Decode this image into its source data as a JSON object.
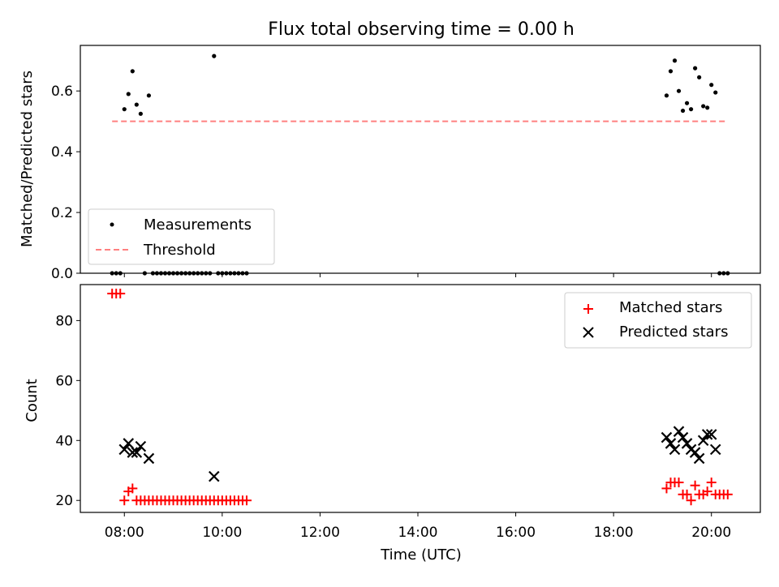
{
  "colors": {
    "measurement": "#000000",
    "threshold": "#ff8080",
    "matched": "#ff0000",
    "predicted": "#000000"
  },
  "chart_data": [
    {
      "type": "scatter",
      "title": "Flux total observing time = 0.00 h",
      "xlabel": "",
      "ylabel": "Matched/Predicted stars",
      "xlim_hours": [
        7.1,
        21.0
      ],
      "ylim": [
        0,
        0.75
      ],
      "x_ticks": [
        8,
        10,
        12,
        14,
        16,
        18,
        20
      ],
      "x_tick_labels": [],
      "y_ticks": [
        0.0,
        0.2,
        0.4,
        0.6
      ],
      "y_tick_labels": [
        "0.0",
        "0.2",
        "0.4",
        "0.6"
      ],
      "legend_placement": "lower-left",
      "legend": [
        "Measurements",
        "Threshold"
      ],
      "series": [
        {
          "name": "Measurements",
          "kind": "points",
          "points": [
            [
              "07:45",
              0
            ],
            [
              "07:50",
              0
            ],
            [
              "07:55",
              0
            ],
            [
              "08:00",
              0.54
            ],
            [
              "08:05",
              0.59
            ],
            [
              "08:10",
              0.665
            ],
            [
              "08:15",
              0.555
            ],
            [
              "08:20",
              0.525
            ],
            [
              "08:30",
              0.585
            ],
            [
              "08:25",
              0
            ],
            [
              "08:35",
              0
            ],
            [
              "08:40",
              0
            ],
            [
              "08:45",
              0
            ],
            [
              "08:50",
              0
            ],
            [
              "08:55",
              0
            ],
            [
              "09:00",
              0
            ],
            [
              "09:05",
              0
            ],
            [
              "09:10",
              0
            ],
            [
              "09:15",
              0
            ],
            [
              "09:20",
              0
            ],
            [
              "09:25",
              0
            ],
            [
              "09:30",
              0
            ],
            [
              "09:35",
              0
            ],
            [
              "09:40",
              0
            ],
            [
              "09:45",
              0
            ],
            [
              "09:50",
              0.715
            ],
            [
              "09:55",
              0
            ],
            [
              "10:00",
              0
            ],
            [
              "10:05",
              0
            ],
            [
              "10:10",
              0
            ],
            [
              "10:15",
              0
            ],
            [
              "10:20",
              0
            ],
            [
              "10:25",
              0
            ],
            [
              "10:30",
              0
            ],
            [
              "19:05",
              0.585
            ],
            [
              "19:10",
              0.665
            ],
            [
              "19:15",
              0.7
            ],
            [
              "19:20",
              0.6
            ],
            [
              "19:25",
              0.535
            ],
            [
              "19:30",
              0.56
            ],
            [
              "19:35",
              0.54
            ],
            [
              "19:40",
              0.675
            ],
            [
              "19:45",
              0.645
            ],
            [
              "19:50",
              0.55
            ],
            [
              "19:55",
              0.545
            ],
            [
              "20:00",
              0.62
            ],
            [
              "20:05",
              0.595
            ],
            [
              "20:10",
              0
            ],
            [
              "20:15",
              0
            ],
            [
              "20:20",
              0
            ]
          ]
        },
        {
          "name": "Threshold",
          "kind": "line",
          "points": [
            [
              "07:45",
              0.5
            ],
            [
              "20:20",
              0.5
            ]
          ]
        }
      ]
    },
    {
      "type": "scatter",
      "title": "",
      "xlabel": "Time (UTC)",
      "ylabel": "Count",
      "xlim_hours": [
        7.1,
        21.0
      ],
      "ylim": [
        16,
        92
      ],
      "x_ticks": [
        8,
        10,
        12,
        14,
        16,
        18,
        20
      ],
      "x_tick_labels": [
        "08:00",
        "10:00",
        "12:00",
        "14:00",
        "16:00",
        "18:00",
        "20:00"
      ],
      "y_ticks": [
        20,
        40,
        60,
        80
      ],
      "y_tick_labels": [
        "20",
        "40",
        "60",
        "80"
      ],
      "legend_placement": "top-right",
      "legend": [
        "Matched stars",
        "Predicted stars"
      ],
      "series": [
        {
          "name": "Matched stars",
          "kind": "plus",
          "points": [
            [
              "07:45",
              89
            ],
            [
              "07:50",
              89
            ],
            [
              "07:55",
              89
            ],
            [
              "08:00",
              20
            ],
            [
              "08:05",
              23
            ],
            [
              "08:10",
              24
            ],
            [
              "08:15",
              20
            ],
            [
              "08:20",
              20
            ],
            [
              "08:25",
              20
            ],
            [
              "08:30",
              20
            ],
            [
              "08:35",
              20
            ],
            [
              "08:40",
              20
            ],
            [
              "08:45",
              20
            ],
            [
              "08:50",
              20
            ],
            [
              "08:55",
              20
            ],
            [
              "09:00",
              20
            ],
            [
              "09:05",
              20
            ],
            [
              "09:10",
              20
            ],
            [
              "09:15",
              20
            ],
            [
              "09:20",
              20
            ],
            [
              "09:25",
              20
            ],
            [
              "09:30",
              20
            ],
            [
              "09:35",
              20
            ],
            [
              "09:40",
              20
            ],
            [
              "09:45",
              20
            ],
            [
              "09:50",
              20
            ],
            [
              "09:55",
              20
            ],
            [
              "10:00",
              20
            ],
            [
              "10:05",
              20
            ],
            [
              "10:10",
              20
            ],
            [
              "10:15",
              20
            ],
            [
              "10:20",
              20
            ],
            [
              "10:25",
              20
            ],
            [
              "10:30",
              20
            ],
            [
              "19:05",
              24
            ],
            [
              "19:10",
              26
            ],
            [
              "19:15",
              26
            ],
            [
              "19:20",
              26
            ],
            [
              "19:25",
              22
            ],
            [
              "19:30",
              22
            ],
            [
              "19:35",
              20
            ],
            [
              "19:40",
              25
            ],
            [
              "19:45",
              22
            ],
            [
              "19:50",
              22
            ],
            [
              "19:55",
              23
            ],
            [
              "20:00",
              26
            ],
            [
              "20:05",
              22
            ],
            [
              "20:10",
              22
            ],
            [
              "20:15",
              22
            ],
            [
              "20:20",
              22
            ]
          ]
        },
        {
          "name": "Predicted stars",
          "kind": "x",
          "points": [
            [
              "08:00",
              37
            ],
            [
              "08:05",
              39
            ],
            [
              "08:10",
              36
            ],
            [
              "08:15",
              36
            ],
            [
              "08:20",
              38
            ],
            [
              "08:30",
              34
            ],
            [
              "09:50",
              28
            ],
            [
              "19:05",
              41
            ],
            [
              "19:10",
              39
            ],
            [
              "19:15",
              37
            ],
            [
              "19:20",
              43
            ],
            [
              "19:25",
              41
            ],
            [
              "19:30",
              39
            ],
            [
              "19:35",
              37
            ],
            [
              "19:40",
              36
            ],
            [
              "19:45",
              34
            ],
            [
              "19:50",
              40
            ],
            [
              "19:55",
              42
            ],
            [
              "20:00",
              42
            ],
            [
              "20:05",
              37
            ]
          ]
        }
      ]
    }
  ]
}
